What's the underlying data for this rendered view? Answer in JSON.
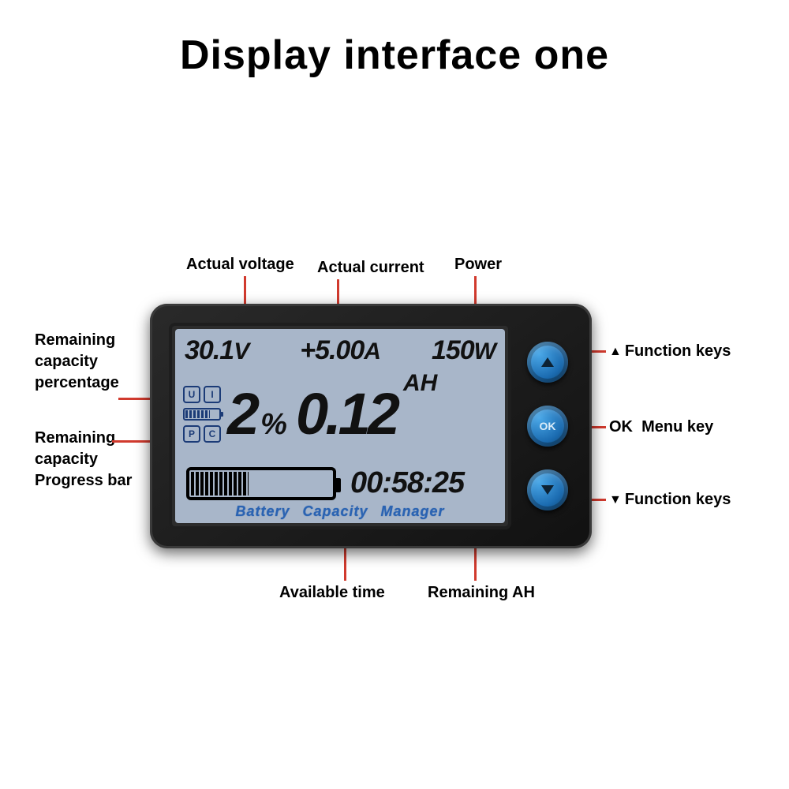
{
  "title": "Display interface one",
  "colors": {
    "background": "#ffffff",
    "title_text": "#000000",
    "callout_text": "#000000",
    "leader_line": "#d13a2e",
    "device_body": "#1a1a1a",
    "lcd_bg": "#a8b6c9",
    "lcd_text": "#111111",
    "brand_text": "#2a63b2",
    "indicator_border": "#1b3b77",
    "button_face": "#2a84c9",
    "button_glyph": "#0d2233"
  },
  "callout_fontsize_pt": 15,
  "title_fontsize_pt": 39,
  "lcd": {
    "voltage": "30.1",
    "voltage_unit": "V",
    "current": "+5.00",
    "current_unit": "A",
    "power": "150",
    "power_unit": "W",
    "percentage": "2",
    "percentage_unit": "%",
    "amp_hours": "0.12",
    "amp_hours_unit": "AH",
    "time": "00:58:25",
    "brand_line": "Battery  Capacity  Manager",
    "indicator_cells": [
      "U",
      "I",
      "P",
      "C"
    ],
    "mini_battery_fill_pct": 70,
    "progress_bar_fill_pct": 40
  },
  "buttons": {
    "up_glyph": "▲",
    "ok_label": "OK",
    "down_glyph": "▼"
  },
  "callouts": {
    "actual_voltage": "Actual voltage",
    "actual_current": "Actual current",
    "power": "Power",
    "remaining_pct": "Remaining\ncapacity\npercentage",
    "remaining_bar": "Remaining\ncapacity\nProgress bar",
    "available_time": "Available time",
    "remaining_ah": "Remaining AH",
    "fn_up": "▲ Function keys",
    "menu": "OK  Menu key",
    "fn_down": "▼ Function keys"
  }
}
